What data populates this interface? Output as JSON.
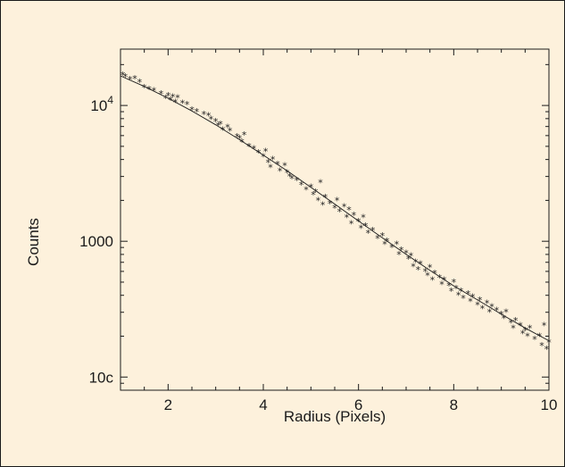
{
  "chart_data": {
    "type": "scatter",
    "title": "",
    "xlabel": "Radius (Pixels)",
    "ylabel": "Counts",
    "xlim": [
      1,
      10
    ],
    "ylim": [
      80,
      26000
    ],
    "y_scale": "log",
    "grid": false,
    "legend": "none",
    "x_ticks": [
      {
        "value": 2,
        "label": "2"
      },
      {
        "value": 4,
        "label": "4"
      },
      {
        "value": 6,
        "label": "6"
      },
      {
        "value": 8,
        "label": "8"
      },
      {
        "value": 10,
        "label": "10"
      }
    ],
    "y_ticks": [
      {
        "value": 100,
        "label": "10c"
      },
      {
        "value": 1000,
        "label": "1000"
      },
      {
        "value": 10000,
        "label": "10",
        "sup": "4"
      }
    ],
    "marker": "*",
    "colors": {
      "background": "#fdf1dc",
      "ink": "#1a1a1a"
    },
    "fit": {
      "name": "",
      "x": [
        1.0,
        1.5,
        2.0,
        2.5,
        3.0,
        3.5,
        4.0,
        4.5,
        5.0,
        5.5,
        6.0,
        6.5,
        7.0,
        7.5,
        8.0,
        8.5,
        9.0,
        9.5,
        10.0
      ],
      "y": [
        16500,
        13800,
        11300,
        9100,
        7200,
        5600,
        4300,
        3300,
        2500,
        1880,
        1410,
        1060,
        800,
        610,
        470,
        370,
        290,
        230,
        185
      ]
    },
    "series": [
      {
        "name": "",
        "points": [
          [
            1.05,
            16800
          ],
          [
            1.1,
            16300
          ],
          [
            1.2,
            15500
          ],
          [
            1.3,
            15800
          ],
          [
            1.4,
            14800
          ],
          [
            1.5,
            13600
          ],
          [
            1.6,
            13200
          ],
          [
            1.7,
            12900
          ],
          [
            1.85,
            12200
          ],
          [
            1.95,
            11300
          ],
          [
            2.0,
            11800
          ],
          [
            2.05,
            11000
          ],
          [
            2.1,
            11600
          ],
          [
            2.15,
            10600
          ],
          [
            2.2,
            11400
          ],
          [
            2.3,
            10400
          ],
          [
            2.4,
            10200
          ],
          [
            2.5,
            9300
          ],
          [
            2.6,
            9000
          ],
          [
            2.75,
            8600
          ],
          [
            2.85,
            8400
          ],
          [
            2.9,
            7900
          ],
          [
            3.0,
            7600
          ],
          [
            3.05,
            7100
          ],
          [
            3.1,
            7300
          ],
          [
            3.15,
            6600
          ],
          [
            3.25,
            6900
          ],
          [
            3.3,
            6500
          ],
          [
            3.45,
            5900
          ],
          [
            3.5,
            5700
          ],
          [
            3.55,
            5400
          ],
          [
            3.6,
            6100
          ],
          [
            3.7,
            5000
          ],
          [
            3.8,
            4800
          ],
          [
            3.9,
            4500
          ],
          [
            4.0,
            4200
          ],
          [
            4.05,
            4600
          ],
          [
            4.1,
            3800
          ],
          [
            4.15,
            3500
          ],
          [
            4.2,
            4000
          ],
          [
            4.3,
            3700
          ],
          [
            4.35,
            3300
          ],
          [
            4.45,
            3600
          ],
          [
            4.5,
            3200
          ],
          [
            4.55,
            3000
          ],
          [
            4.6,
            2900
          ],
          [
            4.7,
            2800
          ],
          [
            4.8,
            2600
          ],
          [
            4.9,
            2400
          ],
          [
            5.0,
            2500
          ],
          [
            5.05,
            2200
          ],
          [
            5.1,
            2300
          ],
          [
            5.15,
            2000
          ],
          [
            5.2,
            2700
          ],
          [
            5.25,
            1850
          ],
          [
            5.3,
            2100
          ],
          [
            5.4,
            1900
          ],
          [
            5.5,
            1750
          ],
          [
            5.55,
            2000
          ],
          [
            5.6,
            1650
          ],
          [
            5.7,
            1800
          ],
          [
            5.75,
            1500
          ],
          [
            5.8,
            1700
          ],
          [
            5.85,
            1350
          ],
          [
            5.9,
            1550
          ],
          [
            6.0,
            1400
          ],
          [
            6.05,
            1250
          ],
          [
            6.1,
            1500
          ],
          [
            6.15,
            1300
          ],
          [
            6.2,
            1150
          ],
          [
            6.3,
            1200
          ],
          [
            6.4,
            1050
          ],
          [
            6.5,
            1100
          ],
          [
            6.55,
            950
          ],
          [
            6.6,
            1000
          ],
          [
            6.7,
            900
          ],
          [
            6.8,
            950
          ],
          [
            6.85,
            800
          ],
          [
            6.9,
            860
          ],
          [
            7.0,
            820
          ],
          [
            7.05,
            740
          ],
          [
            7.1,
            780
          ],
          [
            7.15,
            650
          ],
          [
            7.2,
            700
          ],
          [
            7.25,
            620
          ],
          [
            7.3,
            680
          ],
          [
            7.4,
            600
          ],
          [
            7.45,
            560
          ],
          [
            7.5,
            640
          ],
          [
            7.55,
            520
          ],
          [
            7.6,
            580
          ],
          [
            7.7,
            540
          ],
          [
            7.75,
            480
          ],
          [
            7.8,
            520
          ],
          [
            7.9,
            470
          ],
          [
            7.95,
            430
          ],
          [
            8.0,
            500
          ],
          [
            8.05,
            450
          ],
          [
            8.1,
            400
          ],
          [
            8.15,
            430
          ],
          [
            8.2,
            380
          ],
          [
            8.3,
            410
          ],
          [
            8.35,
            360
          ],
          [
            8.4,
            390
          ],
          [
            8.5,
            340
          ],
          [
            8.55,
            370
          ],
          [
            8.6,
            320
          ],
          [
            8.7,
            350
          ],
          [
            8.75,
            300
          ],
          [
            8.8,
            330
          ],
          [
            8.9,
            310
          ],
          [
            9.0,
            290
          ],
          [
            9.05,
            270
          ],
          [
            9.1,
            300
          ],
          [
            9.2,
            250
          ],
          [
            9.25,
            230
          ],
          [
            9.3,
            260
          ],
          [
            9.4,
            240
          ],
          [
            9.45,
            210
          ],
          [
            9.5,
            220
          ],
          [
            9.55,
            200
          ],
          [
            9.6,
            230
          ],
          [
            9.7,
            190
          ],
          [
            9.8,
            200
          ],
          [
            9.85,
            170
          ],
          [
            9.9,
            240
          ],
          [
            9.95,
            160
          ],
          [
            10.0,
            180
          ]
        ]
      }
    ]
  }
}
